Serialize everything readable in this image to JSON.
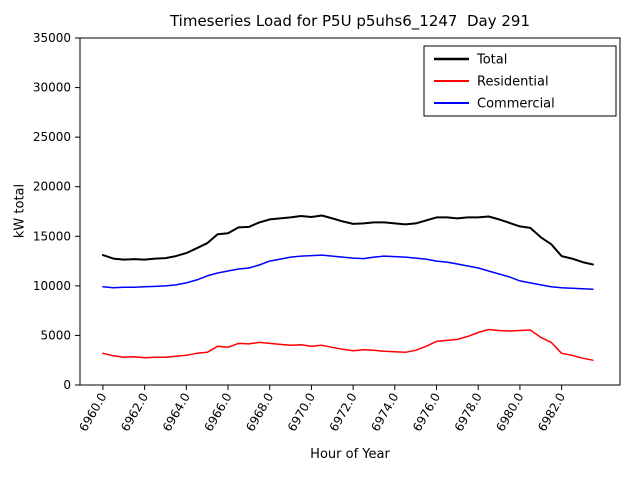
{
  "chart_data": {
    "type": "line",
    "title": "Timeseries Load for P5U p5uhs6_1247  Day 291",
    "xlabel": "Hour of Year",
    "ylabel": "kW total",
    "xlim": [
      6958.9,
      6984.8
    ],
    "ylim": [
      0,
      35000
    ],
    "grid": false,
    "legend_position": "upper right",
    "xticks": [
      6960,
      6962,
      6964,
      6966,
      6968,
      6970,
      6972,
      6974,
      6976,
      6978,
      6980,
      6982
    ],
    "xtick_labels": [
      "6960.0",
      "6962.0",
      "6964.0",
      "6966.0",
      "6968.0",
      "6970.0",
      "6972.0",
      "6974.0",
      "6976.0",
      "6978.0",
      "6980.0",
      "6982.0"
    ],
    "yticks": [
      0,
      5000,
      10000,
      15000,
      20000,
      25000,
      30000,
      35000
    ],
    "ytick_labels": [
      "0",
      "5000",
      "10000",
      "15000",
      "20000",
      "25000",
      "30000",
      "35000"
    ],
    "x": [
      6960.0,
      6960.5,
      6961.0,
      6961.5,
      6962.0,
      6962.5,
      6963.0,
      6963.5,
      6964.0,
      6964.5,
      6965.0,
      6965.5,
      6966.0,
      6966.5,
      6967.0,
      6967.5,
      6968.0,
      6968.5,
      6969.0,
      6969.5,
      6970.0,
      6970.5,
      6971.0,
      6971.5,
      6972.0,
      6972.5,
      6973.0,
      6973.5,
      6974.0,
      6974.5,
      6975.0,
      6975.5,
      6976.0,
      6976.5,
      6977.0,
      6977.5,
      6978.0,
      6978.5,
      6979.0,
      6979.5,
      6980.0,
      6980.5,
      6981.0,
      6981.5,
      6982.0,
      6982.5,
      6983.0,
      6983.5
    ],
    "series": [
      {
        "name": "Total",
        "color": "#000000",
        "linewidth": 2,
        "values": [
          13100,
          12750,
          12650,
          12700,
          12650,
          12750,
          12800,
          13000,
          13300,
          13800,
          14300,
          15200,
          15300,
          15900,
          15950,
          16400,
          16700,
          16800,
          16900,
          17050,
          16950,
          17100,
          16800,
          16500,
          16250,
          16300,
          16400,
          16400,
          16300,
          16200,
          16300,
          16600,
          16900,
          16900,
          16800,
          16900,
          16900,
          17000,
          16700,
          16350,
          16000,
          15850,
          14900,
          14200,
          13000,
          12750,
          12400,
          12150
        ]
      },
      {
        "name": "Residential",
        "color": "#ff0000",
        "linewidth": 1.5,
        "values": [
          3200,
          2950,
          2800,
          2850,
          2750,
          2800,
          2800,
          2900,
          3000,
          3200,
          3300,
          3900,
          3800,
          4200,
          4150,
          4300,
          4200,
          4100,
          4000,
          4050,
          3900,
          4000,
          3800,
          3600,
          3450,
          3550,
          3500,
          3400,
          3350,
          3300,
          3500,
          3900,
          4400,
          4500,
          4600,
          4900,
          5300,
          5600,
          5500,
          5450,
          5500,
          5550,
          4800,
          4300,
          3200,
          3000,
          2700,
          2500
        ]
      },
      {
        "name": "Commercial",
        "color": "#0000ff",
        "linewidth": 1.5,
        "values": [
          9900,
          9800,
          9850,
          9850,
          9900,
          9950,
          10000,
          10100,
          10300,
          10600,
          11000,
          11300,
          11500,
          11700,
          11800,
          12100,
          12500,
          12700,
          12900,
          13000,
          13050,
          13100,
          13000,
          12900,
          12800,
          12750,
          12900,
          13000,
          12950,
          12900,
          12800,
          12700,
          12500,
          12400,
          12200,
          12000,
          11800,
          11500,
          11200,
          10900,
          10500,
          10300,
          10100,
          9900,
          9800,
          9750,
          9700,
          9650
        ]
      }
    ]
  }
}
